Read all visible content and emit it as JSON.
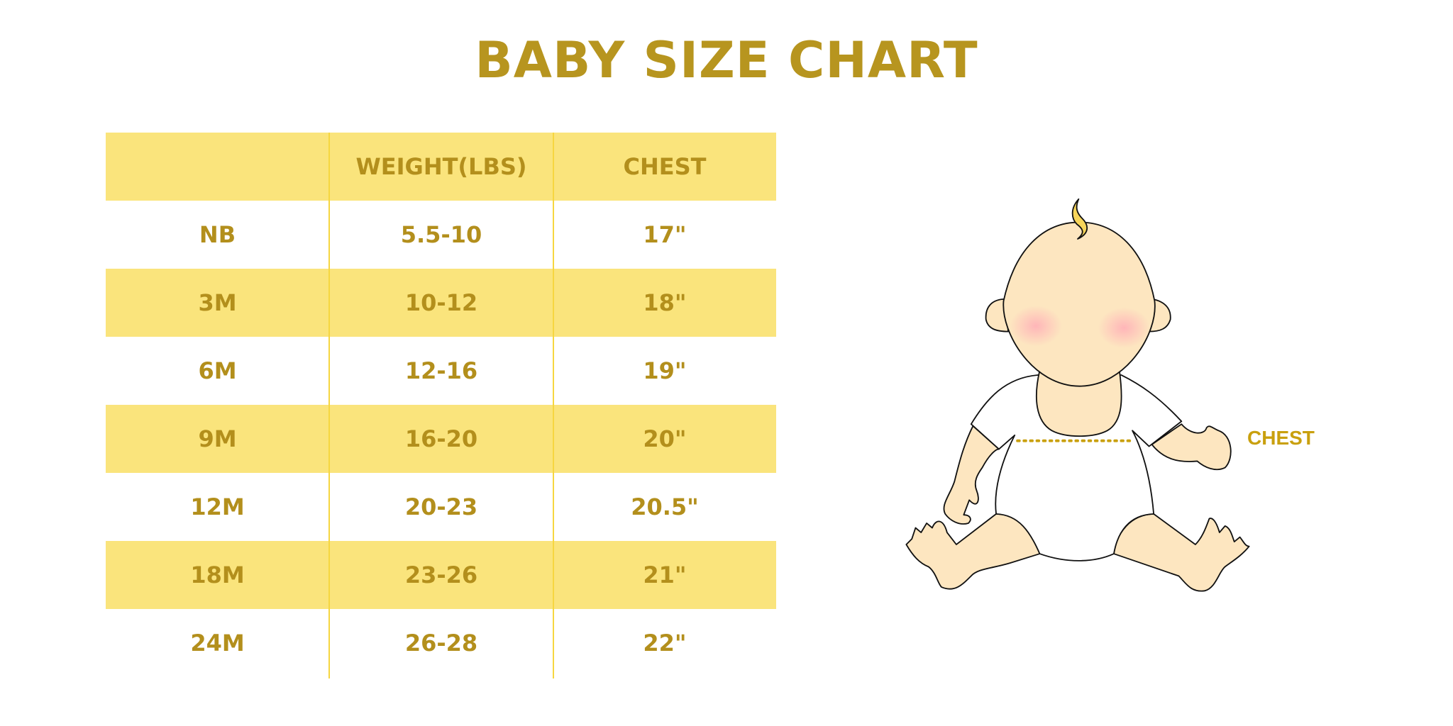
{
  "title": "BABY SIZE CHART",
  "table": {
    "headers": [
      "",
      "WEIGHT(LBS)",
      "CHEST"
    ],
    "rows": [
      [
        "NB",
        "5.5-10",
        "17\""
      ],
      [
        "3M",
        "10-12",
        "18\""
      ],
      [
        "6M",
        "12-16",
        "19\""
      ],
      [
        "9M",
        "16-20",
        "20\""
      ],
      [
        "12M",
        "20-23",
        "20.5\""
      ],
      [
        "18M",
        "23-26",
        "21\""
      ],
      [
        "24M",
        "26-28",
        "22\""
      ]
    ]
  },
  "illustration": {
    "chest_label": "CHEST"
  },
  "colors": {
    "text_gold": "#b38f1c",
    "band_yellow": "#fae47c",
    "divider_yellow": "#f6d640",
    "skin": "#fde6c0"
  }
}
